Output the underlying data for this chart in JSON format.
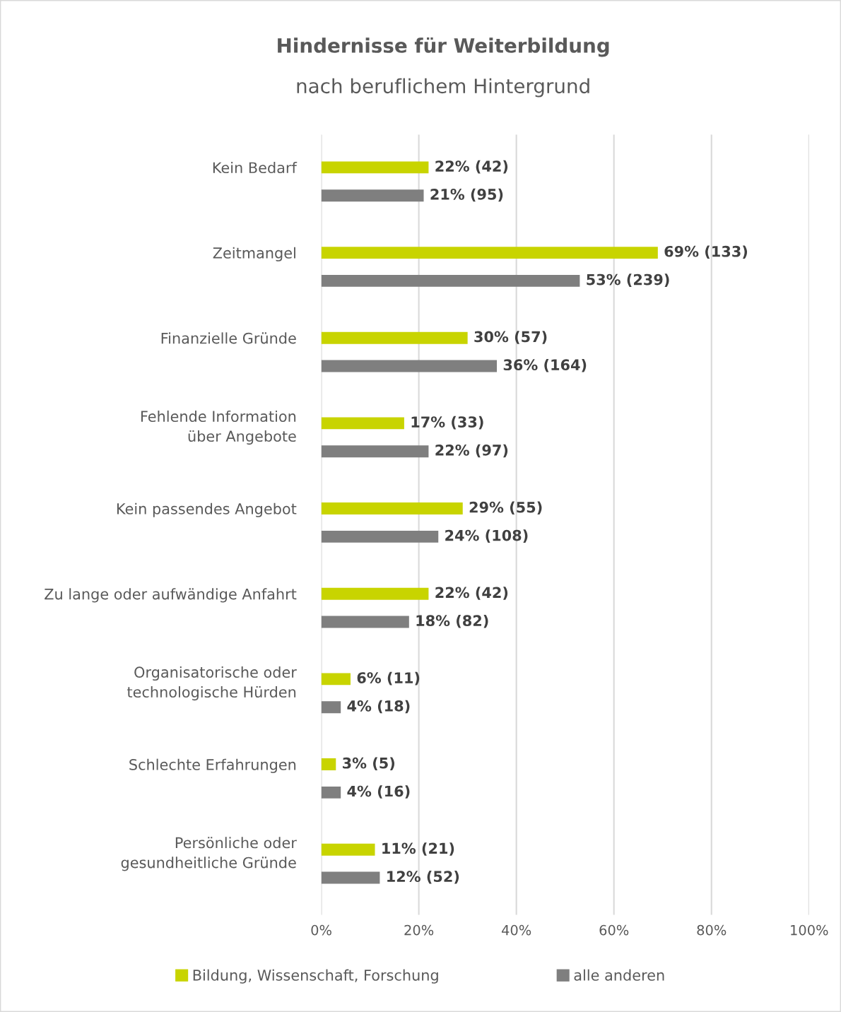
{
  "chart_data": {
    "type": "bar",
    "orientation": "horizontal",
    "title": "Hindernisse für Weiterbildung",
    "subtitle": "nach beruflichem Hintergrund",
    "categories": [
      "Kein Bedarf",
      "Zeitmangel",
      "Finanzielle Gründe",
      "Fehlende Information\nüber Angebote",
      "Kein passendes Angebot",
      "Zu lange oder aufwändige Anfahrt",
      "Organisatorische oder\ntechnologische Hürden",
      "Schlechte Erfahrungen",
      "Persönliche oder\ngesundheitliche Gründe"
    ],
    "series": [
      {
        "name": "Bildung, Wissenschaft, Forschung",
        "color": "#c8d400",
        "values": [
          22,
          69,
          30,
          17,
          29,
          22,
          6,
          3,
          11
        ],
        "value_labels": [
          "22% (42)",
          "69% (133)",
          "30% (57)",
          "17% (33)",
          "29% (55)",
          "22% (42)",
          "6% (11)",
          "3% (5)",
          "11% (21)"
        ]
      },
      {
        "name": "alle anderen",
        "color": "#7f7f7f",
        "values": [
          21,
          53,
          36,
          22,
          24,
          18,
          4,
          4,
          12
        ],
        "value_labels": [
          "21% (95)",
          "53% (239)",
          "36% (164)",
          "22% (97)",
          "24% (108)",
          "18% (82)",
          "4% (18)",
          "4% (16)",
          "12% (52)"
        ]
      }
    ],
    "xlim": [
      0,
      100
    ],
    "xticks": [
      {
        "value": 0,
        "label": "0%"
      },
      {
        "value": 20,
        "label": "20%"
      },
      {
        "value": 40,
        "label": "40%"
      },
      {
        "value": 60,
        "label": "60%"
      },
      {
        "value": 80,
        "label": "80%"
      },
      {
        "value": 100,
        "label": "100%"
      }
    ],
    "grid": "x",
    "legend": "bottom"
  }
}
